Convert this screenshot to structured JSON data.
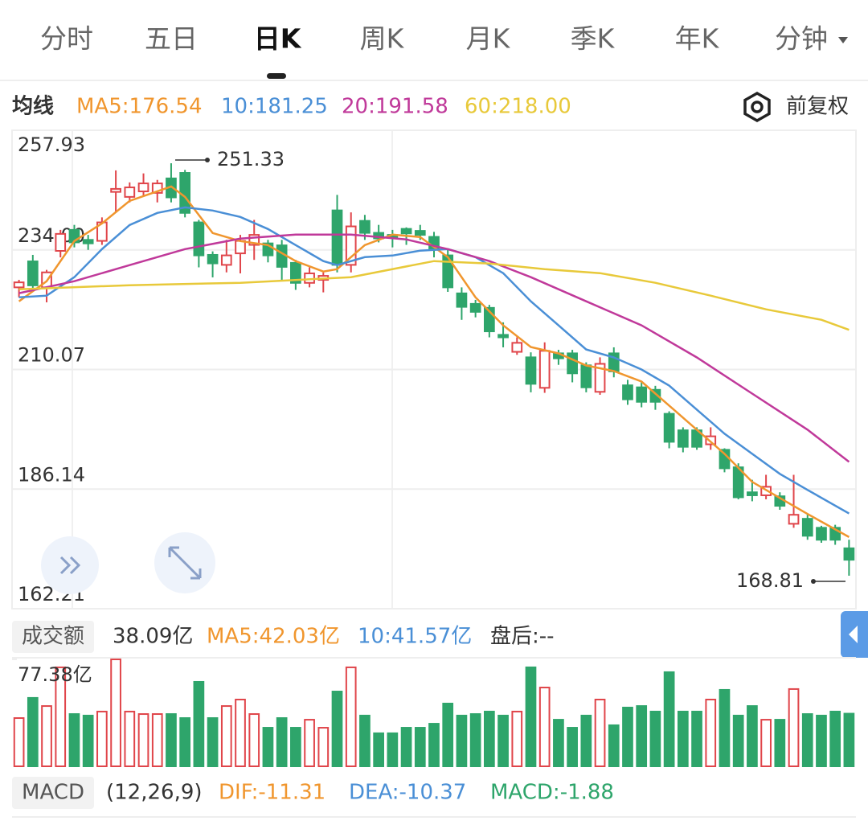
{
  "tabs": [
    "分时",
    "五日",
    "日K",
    "周K",
    "月K",
    "季K",
    "年K",
    "分钟"
  ],
  "active_tab": 2,
  "ma_header": {
    "title": "均线",
    "adjust": "前复权"
  },
  "chart_data": [
    {
      "type": "candlestick",
      "up_color": "#e0454a",
      "down_color": "#2ea56b",
      "ylim": [
        162.21,
        257.93
      ],
      "yticks": [
        162.21,
        186.14,
        210.07,
        {
          "value": 234,
          "label": "234.00"
        },
        257.93
      ],
      "grid": true,
      "open": [
        226.5,
        231.7,
        226.5,
        233.8,
        238,
        236,
        235.8,
        245.6,
        244.6,
        245.7,
        245.4,
        248.3,
        249.4,
        239.5,
        233,
        231,
        233.3,
        235,
        235.3,
        234.9,
        231.4,
        227.4,
        228,
        241.9,
        231,
        239.8,
        237.4,
        237,
        238.2,
        237.8,
        236.6,
        232.9,
        225.3,
        223.2,
        222.4,
        217,
        213.6,
        212.5,
        206.4,
        213.3,
        213.3,
        210.9,
        205.6,
        213.3,
        206.9,
        206.5,
        206,
        201.2,
        197.9,
        197.9,
        195.1,
        194,
        190.5,
        185.5,
        184.9,
        184.7,
        179.2,
        180.2,
        178.4,
        178.4,
        174.3
      ],
      "high": [
        228,
        233,
        230,
        238,
        239,
        237,
        240.5,
        249.9,
        247.5,
        249.3,
        248,
        251.33,
        250,
        240,
        233.7,
        236,
        237,
        240,
        236,
        236,
        232,
        230.5,
        229.5,
        245,
        241.5,
        241,
        239,
        238,
        238.5,
        239,
        237.6,
        234,
        226.5,
        224,
        223,
        219.5,
        216.5,
        213.5,
        215.5,
        214,
        214,
        211.5,
        212.5,
        214.5,
        208,
        207.5,
        206.8,
        201.7,
        198.5,
        198.5,
        198.5,
        194.3,
        191.3,
        188,
        189,
        185.5,
        189,
        181,
        178.8,
        179,
        176
      ],
      "low": [
        224.5,
        226,
        223.5,
        232.5,
        234.5,
        234,
        235,
        241.4,
        243.5,
        244.8,
        243.5,
        243.5,
        240.5,
        230.5,
        228.5,
        229.5,
        229.3,
        232,
        231.5,
        228,
        226,
        226.5,
        225.5,
        229.5,
        229.5,
        236,
        235.5,
        234.5,
        235,
        236,
        232.5,
        225.6,
        220,
        220.5,
        216.5,
        214.5,
        213,
        205.5,
        205.4,
        211,
        207.5,
        205.5,
        205,
        208.5,
        203,
        202.5,
        202,
        194.3,
        193.5,
        194,
        194,
        189.5,
        184.1,
        183.7,
        184.1,
        182,
        178.4,
        176,
        175.4,
        175,
        168.81
      ],
      "close": [
        227.5,
        226.9,
        229.5,
        237.2,
        235.5,
        235.3,
        239.5,
        246.2,
        246.5,
        247.3,
        247.3,
        244.5,
        241.4,
        232.9,
        231.3,
        232.9,
        235.8,
        237,
        232.9,
        230.6,
        227.4,
        229.3,
        228.8,
        231,
        238.7,
        237.4,
        236.3,
        236.5,
        237.3,
        237,
        234.2,
        226.5,
        222.6,
        221.6,
        217.7,
        216.5,
        215.4,
        207.2,
        213.8,
        212.3,
        209.3,
        206.5,
        211.2,
        209.7,
        204.1,
        203.6,
        203.6,
        195.6,
        194.6,
        194.6,
        196.7,
        190.3,
        184.5,
        184.9,
        186.6,
        182.8,
        181,
        176.8,
        176,
        176,
        172
      ],
      "series": [
        {
          "name": "MA5:176.54",
          "color": "#f0962e",
          "x": [
            0,
            2,
            4,
            6,
            8,
            10,
            11,
            12,
            14,
            16,
            18,
            20,
            22,
            23,
            25,
            27,
            29,
            31,
            33,
            35,
            37,
            39,
            41,
            43,
            45,
            47,
            49,
            51,
            53,
            55,
            57,
            60
          ],
          "values": [
            223.72,
            227.73,
            235.76,
            239.3,
            243.8,
            245.72,
            246.69,
            244.6,
            237.37,
            235.76,
            234.96,
            231.75,
            229.66,
            230.14,
            234.96,
            237.05,
            236.57,
            232.55,
            224.52,
            218.9,
            214.56,
            213.28,
            210.87,
            209.75,
            207.66,
            202.84,
            198.02,
            193.2,
            187.58,
            184.37,
            181.16,
            176.54
          ]
        },
        {
          "name": "10:181.25",
          "color": "#4a8fd6",
          "x": [
            0,
            2,
            4,
            6,
            8,
            10,
            12,
            14,
            16,
            18,
            20,
            22,
            23,
            25,
            27,
            29,
            31,
            33,
            35,
            37,
            39,
            41,
            43,
            45,
            47,
            49,
            51,
            53,
            55,
            57,
            60
          ],
          "values": [
            224.52,
            224.84,
            228.54,
            234.16,
            238.98,
            241.39,
            242.51,
            241.87,
            240.58,
            238.17,
            234.96,
            231.75,
            230.95,
            232.55,
            232.87,
            233.84,
            234.16,
            232.55,
            229.34,
            223.72,
            218.9,
            214.08,
            212.48,
            210.07,
            206.86,
            202.04,
            197.22,
            193.2,
            189.19,
            185.97,
            181.25
          ]
        },
        {
          "name": "20:191.58",
          "color": "#c0399a",
          "x": [
            0,
            4,
            8,
            12,
            16,
            20,
            24,
            28,
            31,
            34,
            37,
            41,
            45,
            49,
            53,
            57,
            60
          ],
          "values": [
            225.33,
            227.73,
            230.95,
            234.16,
            236.25,
            237.05,
            237.05,
            236.09,
            234.16,
            231.75,
            228.54,
            223.72,
            218.9,
            212.48,
            205.25,
            198.02,
            191.58
          ]
        },
        {
          "name": "60:218.00",
          "color": "#e8c93a",
          "x": [
            0,
            8,
            16,
            24,
            30,
            34,
            38,
            42,
            46,
            50,
            54,
            58,
            60
          ],
          "values": [
            226.13,
            226.93,
            227.41,
            228.54,
            231.75,
            231.27,
            230.14,
            229.34,
            227.41,
            224.84,
            222.11,
            220.02,
            218.0
          ]
        }
      ],
      "high_annotation": 251.33,
      "low_annotation": 168.81
    },
    {
      "type": "volume-bar",
      "title": "成交额",
      "legend": [
        "38.09亿",
        "MA5:42.03亿",
        "10:41.57亿",
        "盘后:--"
      ],
      "ylim": [
        0,
        77.38
      ],
      "yticks": [
        {
          "value": 77.38,
          "label": "77.38亿"
        }
      ],
      "values": [
        34.9,
        49.5,
        43.6,
        71.6,
        37.8,
        36.7,
        39.6,
        77.38,
        39.6,
        37.8,
        37.8,
        37.8,
        34.9,
        61.1,
        34.9,
        43.6,
        48.3,
        37.8,
        27.9,
        34.9,
        27.9,
        33.7,
        27.9,
        54.1,
        71.6,
        36.7,
        23.9,
        23.9,
        27.9,
        27.9,
        30.8,
        45.4,
        36.7,
        37.8,
        39.6,
        36.7,
        39.6,
        71.6,
        57.0,
        33.7,
        27.9,
        36.7,
        48.3,
        29.7,
        42.5,
        43.6,
        39.6,
        68.1,
        39.6,
        39.6,
        48.3,
        55.3,
        36.7,
        43.6,
        33.7,
        33.7,
        55.9,
        37.8,
        36.7,
        39.6,
        38.09
      ]
    }
  ],
  "macd_header": {
    "title": "MACD",
    "params": "(12,26,9)",
    "dif": "DIF:-11.31",
    "dea": "DEA:-10.37",
    "macd": "MACD:-1.88"
  }
}
